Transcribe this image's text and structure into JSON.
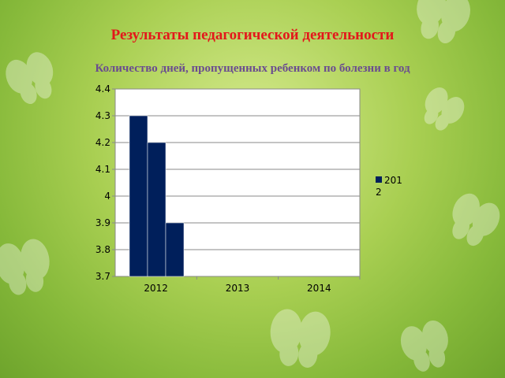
{
  "slide": {
    "title": "Результаты педагогической деятельности",
    "subtitle": "Количество дней, пропущенных ребенком по болезни в год"
  },
  "chart_data": {
    "type": "bar",
    "categories": [
      "2012",
      "2013",
      "2014"
    ],
    "series": [
      {
        "name": "2012",
        "color": "#001f5b",
        "values": [
          4.3,
          4.2,
          3.9
        ]
      }
    ],
    "ylim": [
      3.7,
      4.4
    ],
    "yticks": [
      "3.7",
      "3.8",
      "3.9",
      "4",
      "4.1",
      "4.2",
      "4.3",
      "4.4"
    ],
    "grid": true,
    "legend_position": "right"
  }
}
